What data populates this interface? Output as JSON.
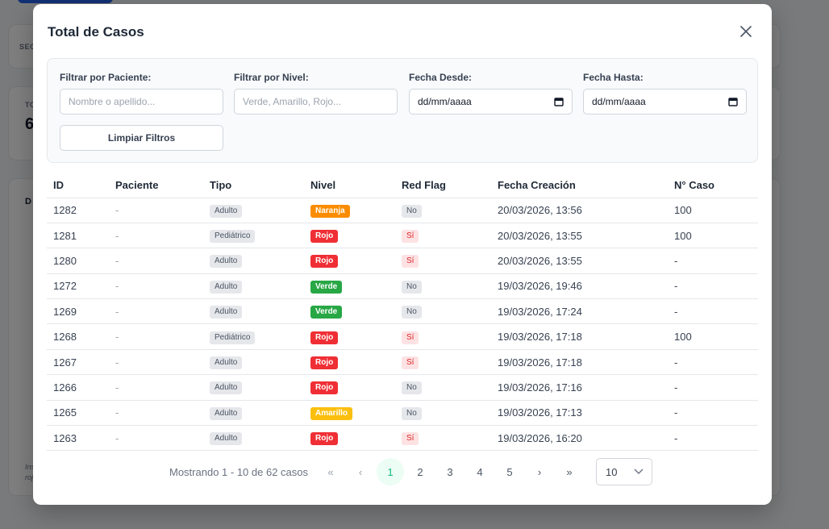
{
  "modal": {
    "title": "Total de Casos"
  },
  "background": {
    "card1_label": "SEG",
    "card2_label": "TO",
    "card2_value": "6",
    "card3_label": "D",
    "note_line1": "Ins",
    "note_line2": "roj"
  },
  "filters": {
    "patient": {
      "label": "Filtrar por Paciente:",
      "placeholder": "Nombre o apellido..."
    },
    "level": {
      "label": "Filtrar por Nivel:",
      "placeholder": "Verde, Amarillo, Rojo..."
    },
    "date_from": {
      "label": "Fecha Desde:",
      "value": "dd/mm/aaaa"
    },
    "date_to": {
      "label": "Fecha Hasta:",
      "value": "dd/mm/aaaa"
    },
    "clear_label": "Limpiar Filtros"
  },
  "table": {
    "headers": [
      "ID",
      "Paciente",
      "Tipo",
      "Nivel",
      "Red Flag",
      "Fecha Creación",
      "N° Caso"
    ],
    "rows": [
      {
        "id": "1282",
        "patient": "-",
        "type": "Adulto",
        "level": "Naranja",
        "level_class": "naranja",
        "flag": "No",
        "flag_class": "no",
        "date": "20/03/2026, 13:56",
        "case": "100"
      },
      {
        "id": "1281",
        "patient": "-",
        "type": "Pediátrico",
        "level": "Rojo",
        "level_class": "rojo",
        "flag": "Sí",
        "flag_class": "si",
        "date": "20/03/2026, 13:55",
        "case": "100"
      },
      {
        "id": "1280",
        "patient": "-",
        "type": "Adulto",
        "level": "Rojo",
        "level_class": "rojo",
        "flag": "Sí",
        "flag_class": "si",
        "date": "20/03/2026, 13:55",
        "case": "-"
      },
      {
        "id": "1272",
        "patient": "-",
        "type": "Adulto",
        "level": "Verde",
        "level_class": "verde",
        "flag": "No",
        "flag_class": "no",
        "date": "19/03/2026, 19:46",
        "case": "-"
      },
      {
        "id": "1269",
        "patient": "-",
        "type": "Adulto",
        "level": "Verde",
        "level_class": "verde",
        "flag": "No",
        "flag_class": "no",
        "date": "19/03/2026, 17:24",
        "case": "-"
      },
      {
        "id": "1268",
        "patient": "-",
        "type": "Pediátrico",
        "level": "Rojo",
        "level_class": "rojo",
        "flag": "Sí",
        "flag_class": "si",
        "date": "19/03/2026, 17:18",
        "case": "100"
      },
      {
        "id": "1267",
        "patient": "-",
        "type": "Adulto",
        "level": "Rojo",
        "level_class": "rojo",
        "flag": "Sí",
        "flag_class": "si",
        "date": "19/03/2026, 17:18",
        "case": "-"
      },
      {
        "id": "1266",
        "patient": "-",
        "type": "Adulto",
        "level": "Rojo",
        "level_class": "rojo",
        "flag": "No",
        "flag_class": "no",
        "date": "19/03/2026, 17:16",
        "case": "-"
      },
      {
        "id": "1265",
        "patient": "-",
        "type": "Adulto",
        "level": "Amarillo",
        "level_class": "amarillo",
        "flag": "No",
        "flag_class": "no",
        "date": "19/03/2026, 17:13",
        "case": "-"
      },
      {
        "id": "1263",
        "patient": "-",
        "type": "Adulto",
        "level": "Rojo",
        "level_class": "rojo",
        "flag": "Sí",
        "flag_class": "si",
        "date": "19/03/2026, 16:20",
        "case": "-"
      }
    ]
  },
  "pagination": {
    "info": "Mostrando 1 - 10 de 62 casos",
    "pages": [
      "1",
      "2",
      "3",
      "4",
      "5"
    ],
    "active_page": "1",
    "page_size": "10",
    "icons": {
      "first": "double-chevron-left-icon",
      "prev": "chevron-left-icon",
      "next": "chevron-right-icon",
      "last": "double-chevron-right-icon"
    }
  },
  "colors": {
    "accent": "#10b981",
    "naranja": "#fb8c00",
    "rojo": "#ef2f35",
    "verde": "#28a745",
    "amarillo": "#fbbf0f"
  }
}
